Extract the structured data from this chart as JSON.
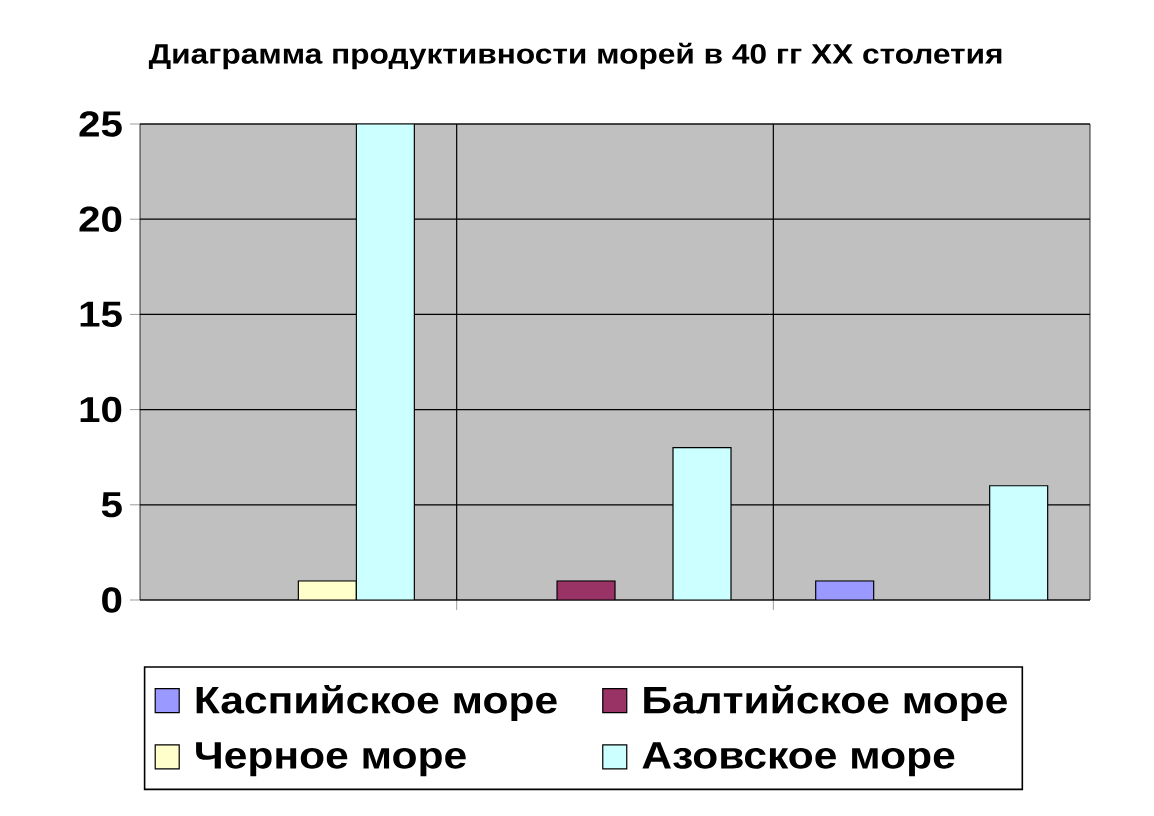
{
  "chart_data": {
    "type": "bar",
    "title": "Диаграмма продуктивности морей в 40 гг XX столетия",
    "categories": [
      null,
      null,
      null
    ],
    "series": [
      {
        "name": "Каспийское море",
        "color": "#9999ff",
        "values": [
          null,
          null,
          1
        ]
      },
      {
        "name": "Балтийское море",
        "color": "#993366",
        "values": [
          null,
          1,
          null
        ]
      },
      {
        "name": "Черное море",
        "color": "#ffffcc",
        "values": [
          1,
          null,
          null
        ]
      },
      {
        "name": "Азовское море",
        "color": "#ccffff",
        "values": [
          25,
          8,
          6
        ]
      }
    ],
    "ylim": [
      0,
      25
    ],
    "yticks": [
      0,
      5,
      10,
      15,
      20,
      25
    ],
    "grid": true,
    "legend": "bottom"
  }
}
